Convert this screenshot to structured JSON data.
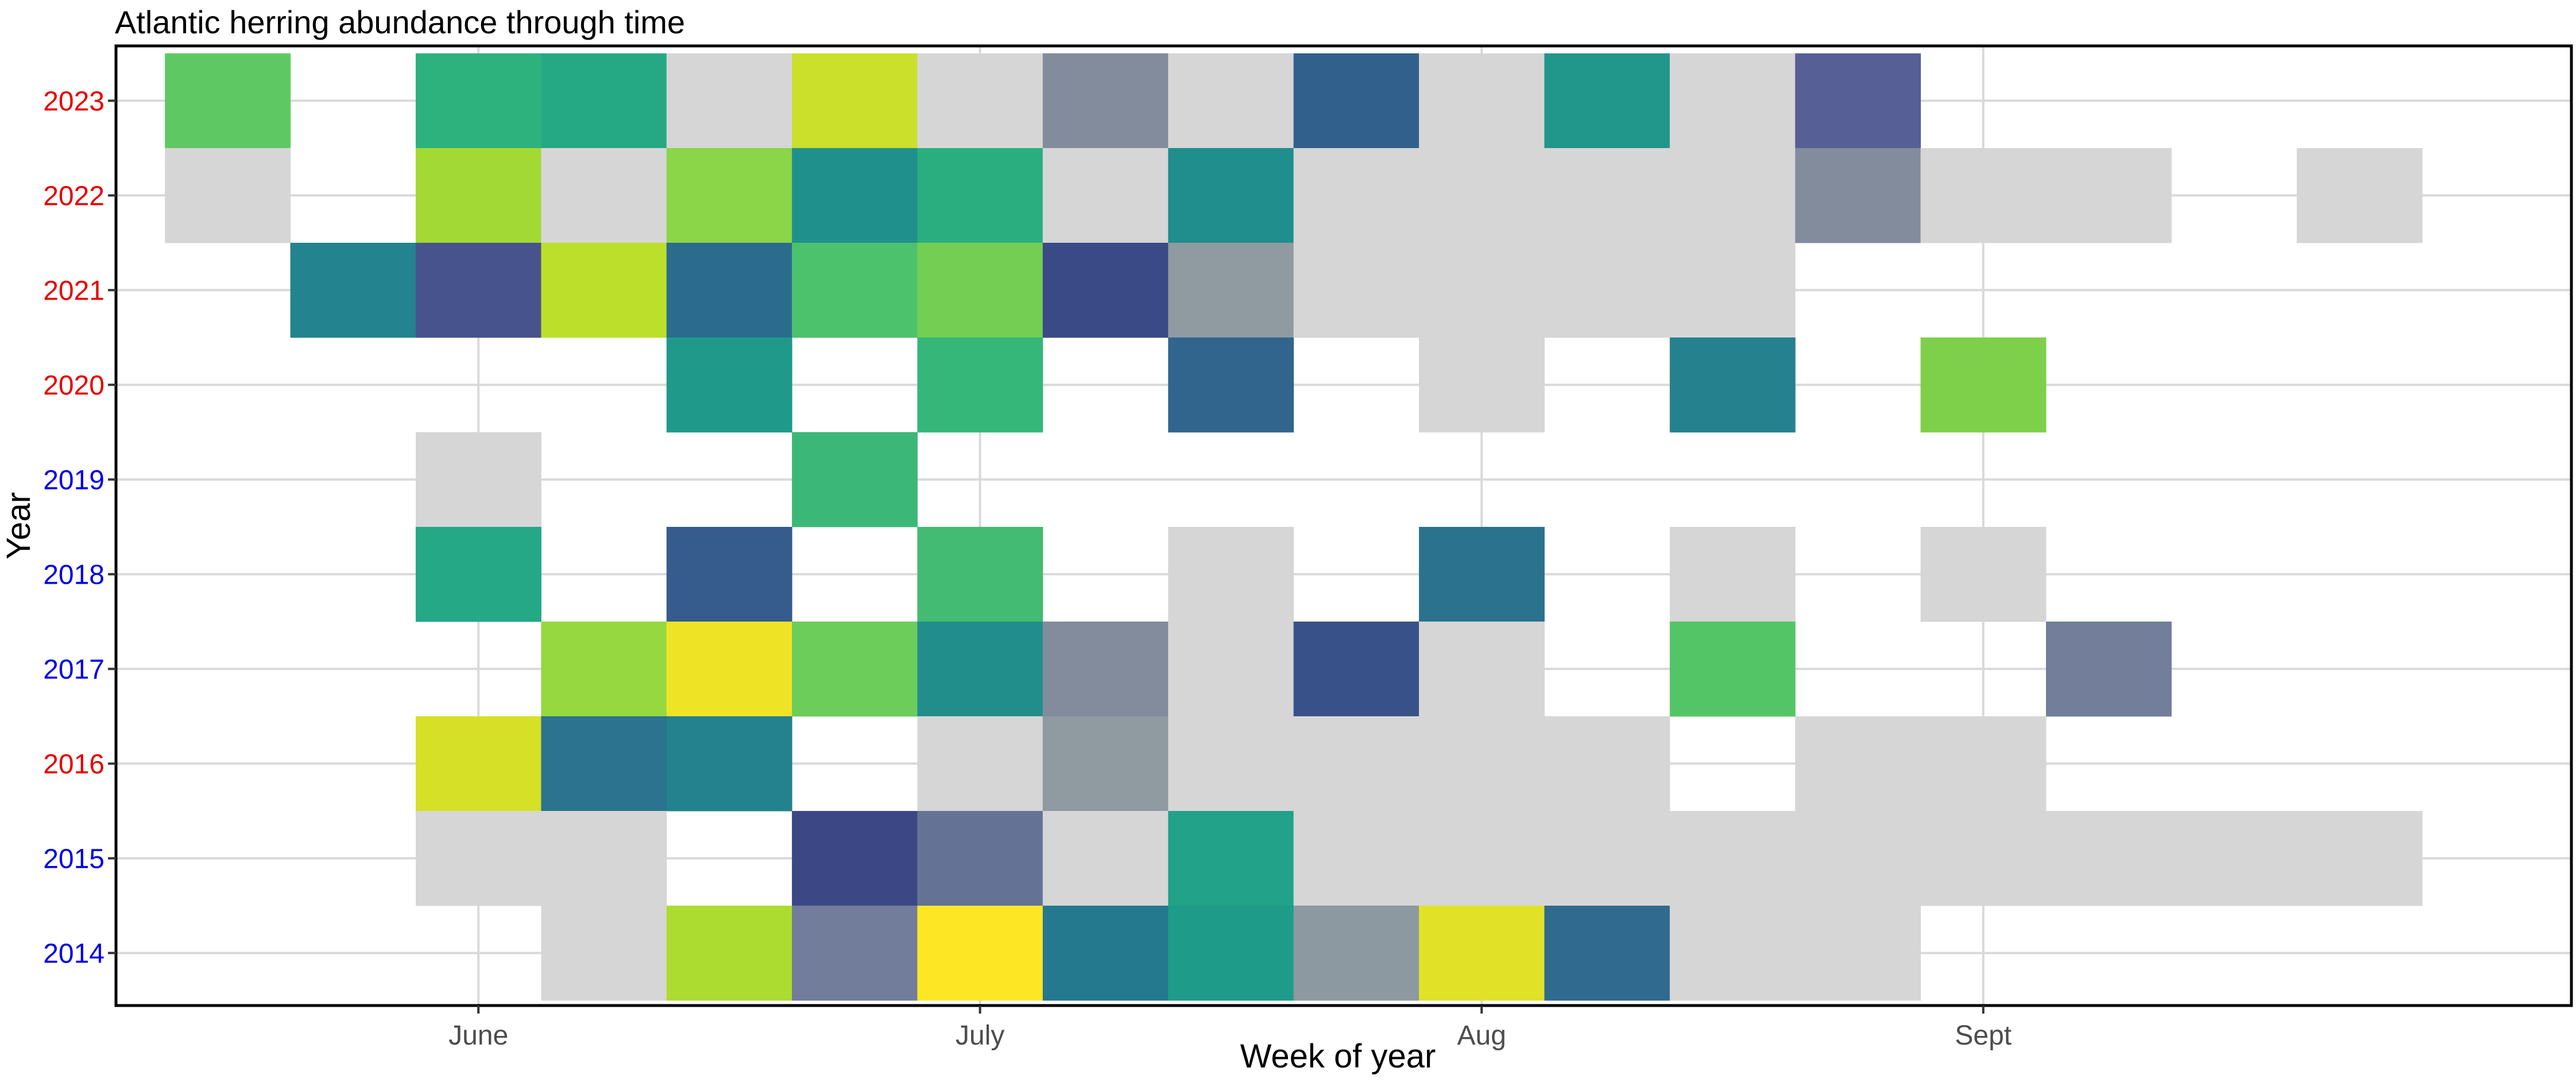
{
  "chart_data": {
    "type": "heatmap",
    "title": "Atlantic herring abundance through time",
    "xlabel": "Week of year",
    "ylabel": "Year",
    "x_ticks": [
      {
        "label": "June",
        "week": 22
      },
      {
        "label": "July",
        "week": 26
      },
      {
        "label": "Aug",
        "week": 30
      },
      {
        "label": "Sept",
        "week": 34
      }
    ],
    "xlim": [
      19.11,
      38.69
    ],
    "years": [
      2023,
      2022,
      2021,
      2020,
      2019,
      2018,
      2017,
      2016,
      2015,
      2014
    ],
    "year_label_colors": {
      "2023": "#e60000",
      "2022": "#e60000",
      "2021": "#e60000",
      "2020": "#e60000",
      "2019": "#0000e6",
      "2018": "#0000e6",
      "2017": "#0000e6",
      "2016": "#e60000",
      "2015": "#0000e6",
      "2014": "#0000e6"
    },
    "grid": true,
    "missing_color": "#d6d6d6",
    "cells": [
      {
        "year": 2023,
        "week": 20,
        "color": "#5ec962"
      },
      {
        "year": 2023,
        "week": 22,
        "color": "#2db27d"
      },
      {
        "year": 2023,
        "week": 23,
        "color": "#25a984"
      },
      {
        "year": 2023,
        "week": 24,
        "color": "#d6d6d6"
      },
      {
        "year": 2023,
        "week": 25,
        "color": "#cae02b"
      },
      {
        "year": 2023,
        "week": 26,
        "color": "#d6d6d6"
      },
      {
        "year": 2023,
        "week": 27,
        "color": "#828c9c"
      },
      {
        "year": 2023,
        "week": 28,
        "color": "#d6d6d6"
      },
      {
        "year": 2023,
        "week": 29,
        "color": "#31608c"
      },
      {
        "year": 2023,
        "week": 30,
        "color": "#d6d6d6"
      },
      {
        "year": 2023,
        "week": 31,
        "color": "#21968a"
      },
      {
        "year": 2023,
        "week": 32,
        "color": "#d6d6d6"
      },
      {
        "year": 2023,
        "week": 33,
        "color": "#565f96"
      },
      {
        "year": 2022,
        "week": 20,
        "color": "#d6d6d6"
      },
      {
        "year": 2022,
        "week": 22,
        "color": "#a2d935"
      },
      {
        "year": 2022,
        "week": 23,
        "color": "#d6d6d6"
      },
      {
        "year": 2022,
        "week": 24,
        "color": "#8ad548"
      },
      {
        "year": 2022,
        "week": 25,
        "color": "#20908c"
      },
      {
        "year": 2022,
        "week": 26,
        "color": "#2aae80"
      },
      {
        "year": 2022,
        "week": 27,
        "color": "#d6d6d6"
      },
      {
        "year": 2022,
        "week": 28,
        "color": "#208e8c"
      },
      {
        "year": 2022,
        "week": 29,
        "color": "#d6d6d6"
      },
      {
        "year": 2022,
        "week": 30,
        "color": "#d6d6d6"
      },
      {
        "year": 2022,
        "week": 31,
        "color": "#d6d6d6"
      },
      {
        "year": 2022,
        "week": 32,
        "color": "#d6d6d6"
      },
      {
        "year": 2022,
        "week": 33,
        "color": "#828c9c"
      },
      {
        "year": 2022,
        "week": 34,
        "color": "#d6d6d6"
      },
      {
        "year": 2022,
        "week": 35,
        "color": "#d6d6d6"
      },
      {
        "year": 2022,
        "week": 37,
        "color": "#d6d6d6"
      },
      {
        "year": 2021,
        "week": 21,
        "color": "#23838e"
      },
      {
        "year": 2021,
        "week": 22,
        "color": "#47538c"
      },
      {
        "year": 2021,
        "week": 23,
        "color": "#bcdf2b"
      },
      {
        "year": 2021,
        "week": 24,
        "color": "#2b6c8e"
      },
      {
        "year": 2021,
        "week": 25,
        "color": "#4cc26c"
      },
      {
        "year": 2021,
        "week": 26,
        "color": "#74ce54"
      },
      {
        "year": 2021,
        "week": 27,
        "color": "#3a4a87"
      },
      {
        "year": 2021,
        "week": 28,
        "color": "#8f9aa1"
      },
      {
        "year": 2021,
        "week": 29,
        "color": "#d6d6d6"
      },
      {
        "year": 2021,
        "week": 30,
        "color": "#d6d6d6"
      },
      {
        "year": 2021,
        "week": 31,
        "color": "#d6d6d6"
      },
      {
        "year": 2021,
        "week": 32,
        "color": "#d6d6d6"
      },
      {
        "year": 2020,
        "week": 24,
        "color": "#1f9a8a"
      },
      {
        "year": 2020,
        "week": 26,
        "color": "#35b779"
      },
      {
        "year": 2020,
        "week": 28,
        "color": "#31658e"
      },
      {
        "year": 2020,
        "week": 30,
        "color": "#d6d6d6"
      },
      {
        "year": 2020,
        "week": 32,
        "color": "#26818e"
      },
      {
        "year": 2020,
        "week": 34,
        "color": "#7ed04b"
      },
      {
        "year": 2019,
        "week": 22,
        "color": "#d6d6d6"
      },
      {
        "year": 2019,
        "week": 25,
        "color": "#3bb877"
      },
      {
        "year": 2018,
        "week": 22,
        "color": "#25a886"
      },
      {
        "year": 2018,
        "week": 24,
        "color": "#355c8d"
      },
      {
        "year": 2018,
        "week": 26,
        "color": "#43bb72"
      },
      {
        "year": 2018,
        "week": 28,
        "color": "#d6d6d6"
      },
      {
        "year": 2018,
        "week": 30,
        "color": "#2b728e"
      },
      {
        "year": 2018,
        "week": 32,
        "color": "#d6d6d6"
      },
      {
        "year": 2018,
        "week": 34,
        "color": "#d6d6d6"
      },
      {
        "year": 2017,
        "week": 23,
        "color": "#95d840"
      },
      {
        "year": 2017,
        "week": 24,
        "color": "#efe326"
      },
      {
        "year": 2017,
        "week": 25,
        "color": "#6ccd5a"
      },
      {
        "year": 2017,
        "week": 26,
        "color": "#228e8c"
      },
      {
        "year": 2017,
        "week": 27,
        "color": "#828c9c"
      },
      {
        "year": 2017,
        "week": 28,
        "color": "#d6d6d6"
      },
      {
        "year": 2017,
        "week": 29,
        "color": "#385188"
      },
      {
        "year": 2017,
        "week": 30,
        "color": "#d6d6d6"
      },
      {
        "year": 2017,
        "week": 32,
        "color": "#54c566"
      },
      {
        "year": 2017,
        "week": 35,
        "color": "#727e9a"
      },
      {
        "year": 2016,
        "week": 22,
        "color": "#d6e026"
      },
      {
        "year": 2016,
        "week": 23,
        "color": "#2b738e"
      },
      {
        "year": 2016,
        "week": 24,
        "color": "#23828e"
      },
      {
        "year": 2016,
        "week": 26,
        "color": "#d6d6d6"
      },
      {
        "year": 2016,
        "week": 27,
        "color": "#8f9aa1"
      },
      {
        "year": 2016,
        "week": 28,
        "color": "#d6d6d6"
      },
      {
        "year": 2016,
        "week": 29,
        "color": "#d6d6d6"
      },
      {
        "year": 2016,
        "week": 30,
        "color": "#d6d6d6"
      },
      {
        "year": 2016,
        "week": 31,
        "color": "#d6d6d6"
      },
      {
        "year": 2016,
        "week": 33,
        "color": "#d6d6d6"
      },
      {
        "year": 2016,
        "week": 34,
        "color": "#d6d6d6"
      },
      {
        "year": 2015,
        "week": 22,
        "color": "#d6d6d6"
      },
      {
        "year": 2015,
        "week": 23,
        "color": "#d6d6d6"
      },
      {
        "year": 2015,
        "week": 25,
        "color": "#3c4886"
      },
      {
        "year": 2015,
        "week": 26,
        "color": "#647296"
      },
      {
        "year": 2015,
        "week": 27,
        "color": "#d6d6d6"
      },
      {
        "year": 2015,
        "week": 28,
        "color": "#21a289"
      },
      {
        "year": 2015,
        "week": 29,
        "color": "#d6d6d6"
      },
      {
        "year": 2015,
        "week": 30,
        "color": "#d6d6d6"
      },
      {
        "year": 2015,
        "week": 31,
        "color": "#d6d6d6"
      },
      {
        "year": 2015,
        "week": 32,
        "color": "#d6d6d6"
      },
      {
        "year": 2015,
        "week": 33,
        "color": "#d6d6d6"
      },
      {
        "year": 2015,
        "week": 34,
        "color": "#d6d6d6"
      },
      {
        "year": 2015,
        "week": 35,
        "color": "#d6d6d6"
      },
      {
        "year": 2015,
        "week": 36,
        "color": "#d6d6d6"
      },
      {
        "year": 2015,
        "week": 37,
        "color": "#d6d6d6"
      },
      {
        "year": 2014,
        "week": 23,
        "color": "#d6d6d6"
      },
      {
        "year": 2014,
        "week": 24,
        "color": "#addc30"
      },
      {
        "year": 2014,
        "week": 25,
        "color": "#717d9a"
      },
      {
        "year": 2014,
        "week": 26,
        "color": "#fde725"
      },
      {
        "year": 2014,
        "week": 27,
        "color": "#25798e"
      },
      {
        "year": 2014,
        "week": 28,
        "color": "#1f9c89"
      },
      {
        "year": 2014,
        "week": 29,
        "color": "#8d99a1"
      },
      {
        "year": 2014,
        "week": 30,
        "color": "#e1e228"
      },
      {
        "year": 2014,
        "week": 31,
        "color": "#306a8e"
      },
      {
        "year": 2014,
        "week": 32,
        "color": "#d6d6d6"
      },
      {
        "year": 2014,
        "week": 33,
        "color": "#d6d6d6"
      }
    ]
  }
}
